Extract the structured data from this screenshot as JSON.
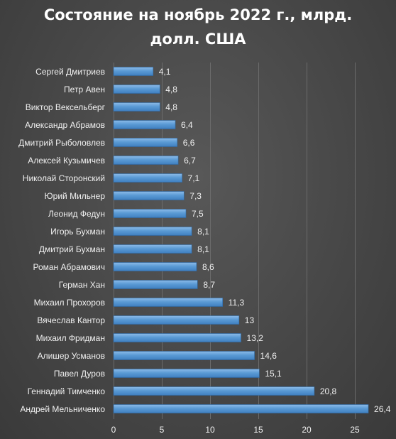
{
  "chart_data": {
    "type": "bar",
    "orientation": "horizontal",
    "title": "Состояние на ноябрь 2022 г., млрд.\nдолл. США",
    "xlabel": "",
    "ylabel": "",
    "categories": [
      "Сергей Дмитриев",
      "Петр Авен",
      "Виктор Вексельберг",
      "Александр Абрамов",
      "Дмитрий Рыболовлев",
      "Алексей Кузьмичев",
      "Николай Сторонский",
      "Юрий Мильнер",
      "Леонид Федун",
      "Игорь Бухман",
      "Дмитрий Бухман",
      "Роман Абрамович",
      "Герман Хан",
      "Михаил Прохоров",
      "Вячеслав Кантор",
      "Михаил Фридман",
      "Алишер Усманов",
      "Павел Дуров",
      "Геннадий Тимченко",
      "Андрей Мельниченко"
    ],
    "values": [
      4.1,
      4.8,
      4.8,
      6.4,
      6.6,
      6.7,
      7.1,
      7.3,
      7.5,
      8.1,
      8.1,
      8.6,
      8.7,
      11.3,
      13,
      13.2,
      14.6,
      15.1,
      20.8,
      26.4
    ],
    "value_labels": [
      "4,1",
      "4,8",
      "4,8",
      "6,4",
      "6,6",
      "6,7",
      "7,1",
      "7,3",
      "7,5",
      "8,1",
      "8,1",
      "8,6",
      "8,7",
      "11,3",
      "13",
      "13,2",
      "14,6",
      "15,1",
      "20,8",
      "26,4"
    ],
    "xticks": [
      0,
      5,
      10,
      15,
      20,
      25
    ],
    "xtick_labels": [
      "0",
      "5",
      "10",
      "15",
      "20",
      "25"
    ],
    "xlim": [
      0,
      28.1
    ],
    "grid": "vertical",
    "legend": "none",
    "bar_color": "#5b9bd5",
    "background_color": "#474747"
  }
}
